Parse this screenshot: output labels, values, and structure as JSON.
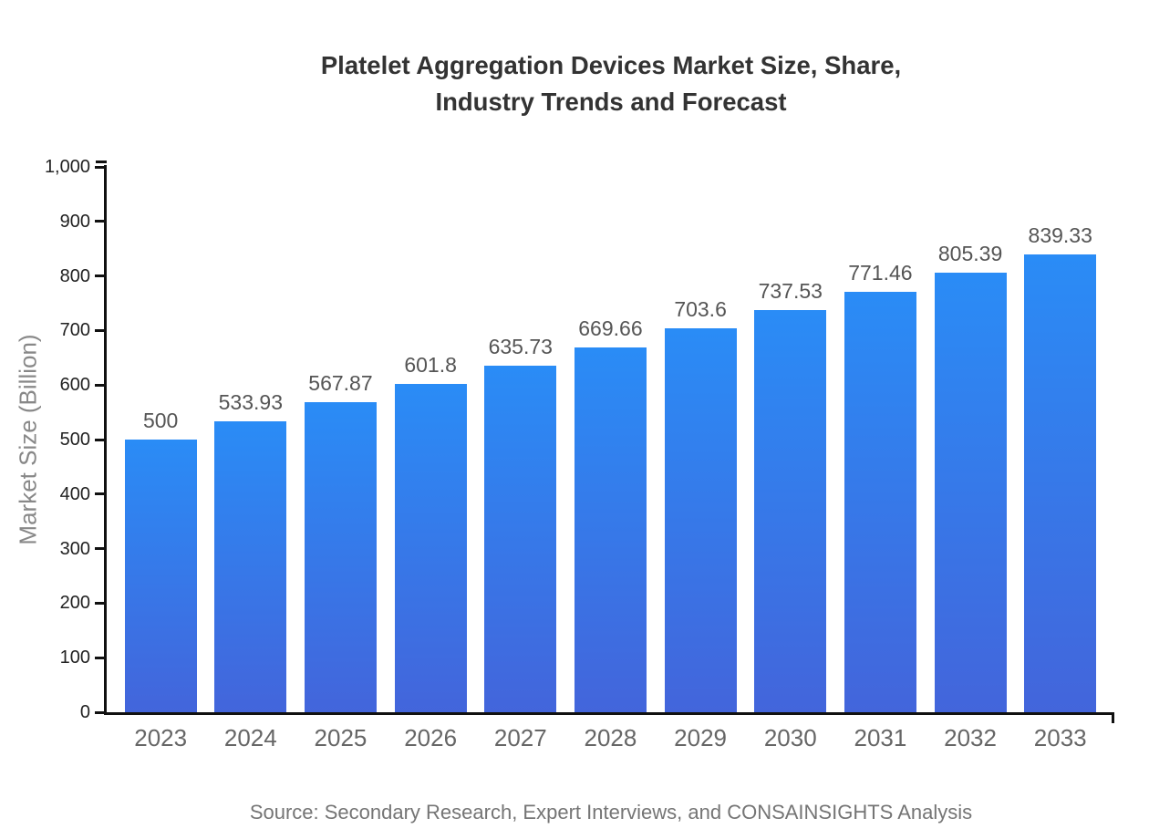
{
  "page": {
    "title_line1": "Platelet Aggregation Devices Market Size, Share,",
    "title_line2": "Industry Trends and Forecast",
    "source": "Source: Secondary Research, Expert Interviews, and CONSAINSIGHTS Analysis"
  },
  "chart_data": {
    "type": "bar",
    "title": "Platelet Aggregation Devices Market Size, Share, Industry Trends and Forecast",
    "categories": [
      "2023",
      "2024",
      "2025",
      "2026",
      "2027",
      "2028",
      "2029",
      "2030",
      "2031",
      "2032",
      "2033"
    ],
    "values": [
      500,
      533.93,
      567.87,
      601.8,
      635.73,
      669.66,
      703.6,
      737.53,
      771.46,
      805.39,
      839.33
    ],
    "value_labels": [
      "500",
      "533.93",
      "567.87",
      "601.8",
      "635.73",
      "669.66",
      "703.6",
      "737.53",
      "771.46",
      "805.39",
      "839.33"
    ],
    "xlabel": "",
    "ylabel": "Market Size (Billion)",
    "ylim": [
      0,
      1000
    ],
    "ytick_step": 100,
    "yticks": [
      {
        "value": 0,
        "label": "0"
      },
      {
        "value": 100,
        "label": "100"
      },
      {
        "value": 200,
        "label": "200"
      },
      {
        "value": 300,
        "label": "300"
      },
      {
        "value": 400,
        "label": "400"
      },
      {
        "value": 500,
        "label": "500"
      },
      {
        "value": 600,
        "label": "600"
      },
      {
        "value": 700,
        "label": "700"
      },
      {
        "value": 800,
        "label": "800"
      },
      {
        "value": 900,
        "label": "900"
      },
      {
        "value": 1000,
        "label": "1,000"
      }
    ],
    "grid": false,
    "legend": "none",
    "colors": {
      "bar_gradient_top": "#2A8CF6",
      "bar_gradient_bottom": "#4365DB",
      "title": "#333333",
      "axis": "#111111",
      "y_tick_label": "#222222",
      "category_label": "#666666",
      "value_label": "#555555",
      "axis_title": "#888888",
      "source": "#757575",
      "background": "#ffffff"
    }
  }
}
